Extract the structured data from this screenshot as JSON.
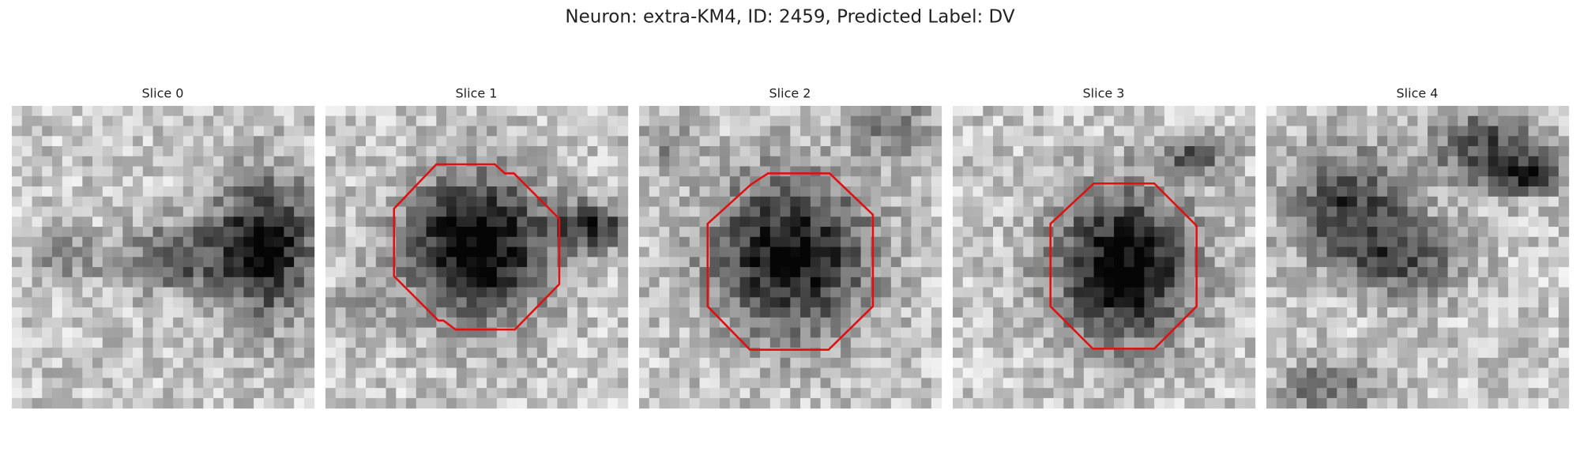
{
  "title": "Neuron: extra-KM4, ID: 2459, Predicted Label: DV",
  "panels": [
    {
      "title": "Slice 0"
    },
    {
      "title": "Slice 1"
    },
    {
      "title": "Slice 2"
    },
    {
      "title": "Slice 3"
    },
    {
      "title": "Slice 4"
    }
  ]
}
